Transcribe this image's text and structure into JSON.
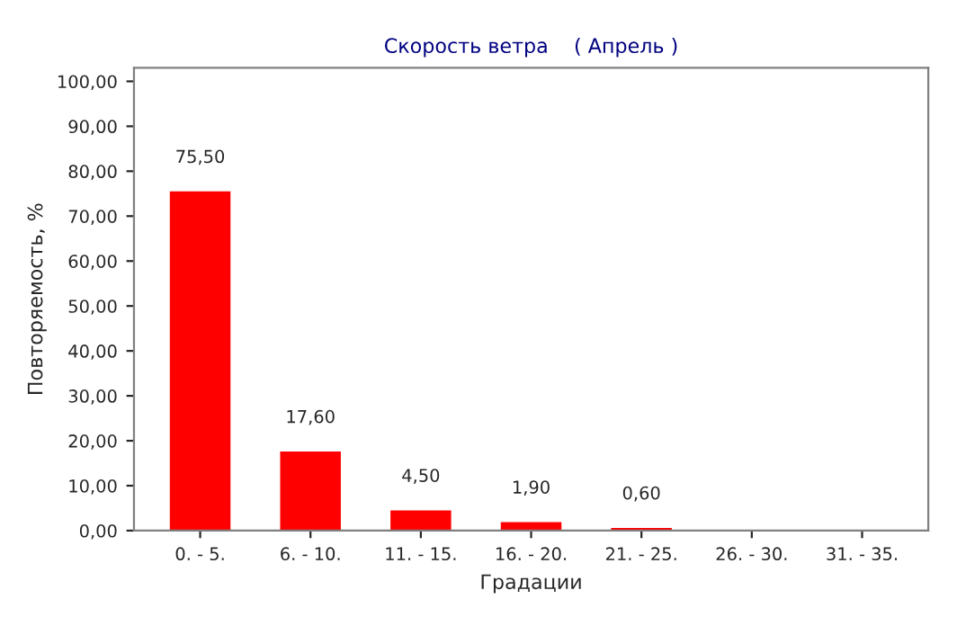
{
  "chart_data": {
    "type": "bar",
    "title": "Скорость ветра    ( Апрель )",
    "xlabel": "Градации",
    "ylabel": "Повторяемость, %",
    "categories": [
      "0. - 5.",
      "6. - 10.",
      "11. - 15.",
      "16. - 20.",
      "21. - 25.",
      "26. - 30.",
      "31. - 35."
    ],
    "values": [
      75.5,
      17.6,
      4.5,
      1.9,
      0.6,
      0,
      0
    ],
    "value_labels": [
      "75,50",
      "17,60",
      "4,50",
      "1,90",
      "0,60",
      null,
      null
    ],
    "color": "#ff0000",
    "ylim": [
      0,
      103
    ],
    "yticks": [
      {
        "value": 0,
        "label": "0,00"
      },
      {
        "value": 10,
        "label": "10,00"
      },
      {
        "value": 20,
        "label": "20,00"
      },
      {
        "value": 30,
        "label": "30,00"
      },
      {
        "value": 40,
        "label": "40,00"
      },
      {
        "value": 50,
        "label": "50,00"
      },
      {
        "value": 60,
        "label": "60,00"
      },
      {
        "value": 70,
        "label": "70,00"
      },
      {
        "value": 80,
        "label": "80,00"
      },
      {
        "value": 90,
        "label": "90,00"
      },
      {
        "value": 100,
        "label": "100,00"
      }
    ],
    "grid": false,
    "legend": false
  }
}
